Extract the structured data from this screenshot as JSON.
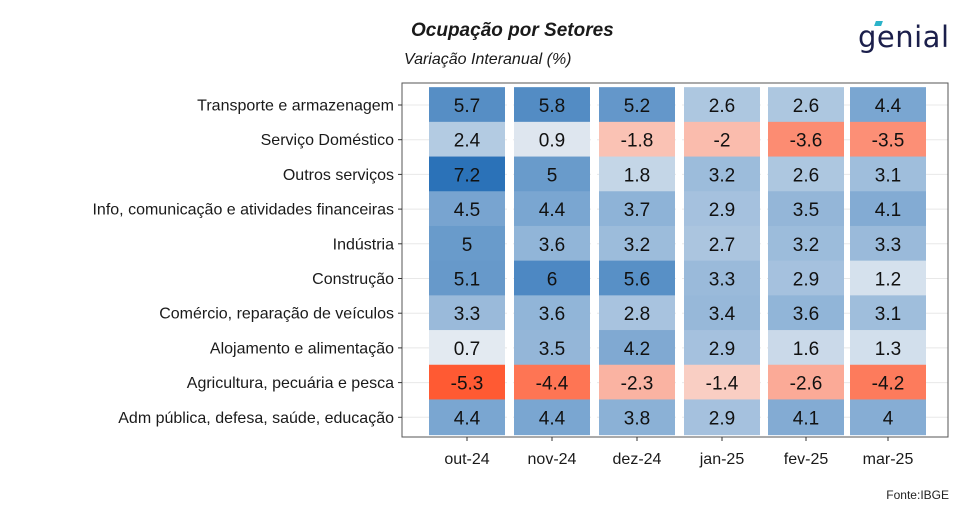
{
  "header": {
    "title": "Ocupação por Setores",
    "subtitle": "Variação Interanual (%)",
    "brand": "genial",
    "source": "Fonte:IBGE"
  },
  "colors": {
    "positive_max": "#2b72b8",
    "neutral": "#f7f7f7",
    "negative_max": "#ff5a33",
    "panel_border": "#555555",
    "grid": "#e8e8e8"
  },
  "chart_data": {
    "type": "heatmap",
    "title": "Ocupação por Setores",
    "subtitle": "Variação Interanual (%)",
    "columns": [
      "out-24",
      "nov-24",
      "dez-24",
      "jan-25",
      "fev-25",
      "mar-25"
    ],
    "rows": [
      "Transporte e armazenagem",
      "Serviço Doméstico",
      "Outros serviços",
      "Info, comunicação e atividades financeiras",
      "Indústria",
      "Construção",
      "Comércio, reparação de veículos",
      "Alojamento e alimentação",
      "Agricultura, pecuária e pesca",
      "Adm pública, defesa, saúde, educação"
    ],
    "values": [
      [
        "5.7",
        "5.8",
        "5.2",
        "2.6",
        "2.6",
        "4.4"
      ],
      [
        "2.4",
        "0.9",
        "-1.8",
        "-2",
        "-3.6",
        "-3.5"
      ],
      [
        "7.2",
        "5",
        "1.8",
        "3.2",
        "2.6",
        "3.1"
      ],
      [
        "4.5",
        "4.4",
        "3.7",
        "2.9",
        "3.5",
        "4.1"
      ],
      [
        "5",
        "3.6",
        "3.2",
        "2.7",
        "3.2",
        "3.3"
      ],
      [
        "5.1",
        "6",
        "5.6",
        "3.3",
        "2.9",
        "1.2"
      ],
      [
        "3.3",
        "3.6",
        "2.8",
        "3.4",
        "3.6",
        "3.1"
      ],
      [
        "0.7",
        "3.5",
        "4.2",
        "2.9",
        "1.6",
        "1.3"
      ],
      [
        "-5.3",
        "-4.4",
        "-2.3",
        "-1.4",
        "-2.6",
        "-4.2"
      ],
      [
        "4.4",
        "4.4",
        "3.8",
        "2.9",
        "4.1",
        "4"
      ]
    ]
  }
}
